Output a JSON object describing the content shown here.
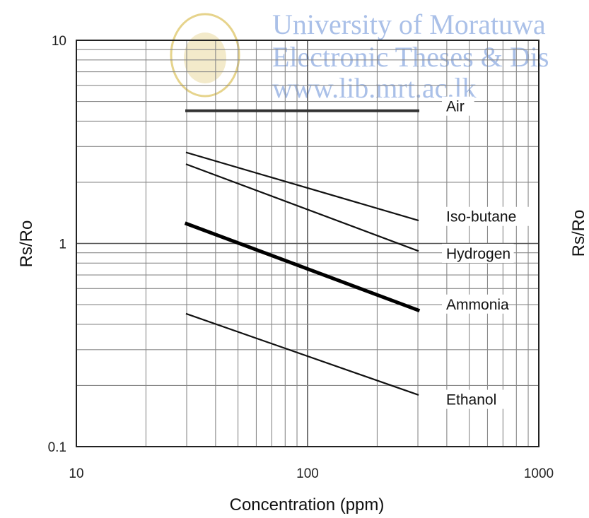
{
  "chart_data": {
    "type": "line",
    "x_scale": "log",
    "y_scale": "log",
    "xlim": [
      10,
      1000
    ],
    "ylim": [
      0.1,
      10
    ],
    "xlabel": "Concentration (ppm)",
    "ylabel": "Rs/Ro",
    "x_ticks": [
      "10",
      "100",
      "1000"
    ],
    "y_ticks": [
      "10",
      "1",
      "0.1"
    ],
    "grid": true,
    "series": [
      {
        "name": "Air",
        "color": "#333333",
        "points": [
          [
            30,
            4.5
          ],
          [
            300,
            4.5
          ]
        ]
      },
      {
        "name": "Iso-butane",
        "color": "#111111",
        "points": [
          [
            30,
            2.8
          ],
          [
            300,
            1.3
          ]
        ]
      },
      {
        "name": "Hydrogen",
        "color": "#111111",
        "points": [
          [
            30,
            2.45
          ],
          [
            300,
            0.92
          ]
        ]
      },
      {
        "name": "Ammonia",
        "color": "#000000",
        "points": [
          [
            30,
            1.25
          ],
          [
            300,
            0.47
          ]
        ]
      },
      {
        "name": "Ethanol",
        "color": "#111111",
        "points": [
          [
            30,
            0.45
          ],
          [
            300,
            0.18
          ]
        ]
      }
    ]
  },
  "watermark": {
    "line1": "University of Moratuwa",
    "line2": "Electronic Theses & Dis",
    "line3": "www.lib.mrt.ac.lk"
  },
  "secondary_ylabel": "Rs/Ro"
}
